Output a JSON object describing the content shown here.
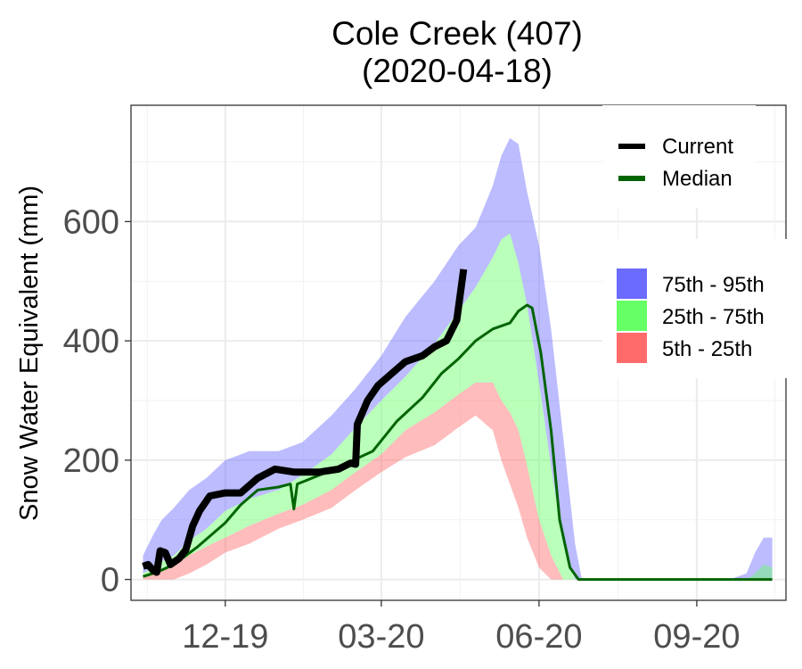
{
  "chart_data": {
    "type": "area",
    "title": [
      "Cole Creek (407)",
      "(2020-04-18)"
    ],
    "ylabel": "Snow Water Equivalent (mm)",
    "xlabel": "",
    "ylim": [
      -35,
      795
    ],
    "xlim": [
      "2019-10-07",
      "2020-10-23"
    ],
    "grid": true,
    "y_ticks": [
      0,
      200,
      400,
      600
    ],
    "x_ticks": [
      {
        "date": "2019-12-01",
        "label": "12-19"
      },
      {
        "date": "2020-03-01",
        "label": "03-20"
      },
      {
        "date": "2020-06-01",
        "label": "06-20"
      },
      {
        "date": "2020-09-01",
        "label": "09-20"
      }
    ],
    "band_dates": [
      "2019-10-14",
      "2019-10-20",
      "2019-10-25",
      "2019-11-01",
      "2019-11-10",
      "2019-11-20",
      "2019-12-01",
      "2019-12-15",
      "2020-01-01",
      "2020-01-15",
      "2020-02-01",
      "2020-02-15",
      "2020-03-01",
      "2020-03-15",
      "2020-04-01",
      "2020-04-15",
      "2020-04-25",
      "2020-05-05",
      "2020-05-10",
      "2020-05-15",
      "2020-05-20",
      "2020-05-25",
      "2020-06-01",
      "2020-06-08",
      "2020-06-15",
      "2020-06-22",
      "2020-06-26",
      "2020-07-01",
      "2020-07-10",
      "2020-08-01",
      "2020-09-01",
      "2020-09-10",
      "2020-09-20",
      "2020-09-30",
      "2020-10-05",
      "2020-10-10",
      "2020-10-15"
    ],
    "bands": [
      {
        "name": "75th - 95th",
        "color": "#6b6bff",
        "opacity": 0.45,
        "lower": [
          10,
          20,
          30,
          40,
          65,
          85,
          115,
          135,
          150,
          175,
          210,
          255,
          300,
          340,
          395,
          450,
          490,
          540,
          570,
          580,
          530,
          460,
          330,
          190,
          60,
          0,
          0,
          0,
          0,
          0,
          0,
          0,
          0,
          0,
          0,
          0,
          0
        ],
        "upper": [
          40,
          75,
          100,
          120,
          150,
          170,
          200,
          215,
          215,
          230,
          275,
          320,
          375,
          440,
          500,
          560,
          590,
          660,
          710,
          740,
          730,
          650,
          560,
          420,
          240,
          60,
          0,
          0,
          0,
          0,
          0,
          0,
          0,
          10,
          45,
          70,
          70
        ]
      },
      {
        "name": "25th - 75th",
        "color": "#66ff66",
        "opacity": 0.45,
        "lower": [
          5,
          10,
          15,
          25,
          40,
          55,
          70,
          90,
          110,
          125,
          150,
          180,
          210,
          250,
          280,
          310,
          330,
          330,
          300,
          280,
          250,
          190,
          100,
          40,
          0,
          0,
          0,
          0,
          0,
          0,
          0,
          0,
          0,
          0,
          0,
          0,
          0
        ],
        "upper": [
          10,
          20,
          30,
          40,
          65,
          85,
          115,
          135,
          150,
          175,
          210,
          255,
          300,
          340,
          395,
          450,
          490,
          540,
          570,
          580,
          530,
          460,
          330,
          190,
          60,
          0,
          0,
          0,
          0,
          0,
          0,
          0,
          0,
          0,
          10,
          25,
          20
        ]
      },
      {
        "name": "5th - 25th",
        "color": "#ff6b6b",
        "opacity": 0.45,
        "lower": [
          0,
          0,
          0,
          0,
          10,
          25,
          45,
          60,
          85,
          100,
          120,
          150,
          180,
          205,
          225,
          255,
          275,
          250,
          200,
          160,
          120,
          70,
          20,
          0,
          0,
          0,
          0,
          0,
          0,
          0,
          0,
          0,
          0,
          0,
          0,
          0,
          0
        ],
        "upper": [
          5,
          10,
          15,
          25,
          40,
          55,
          70,
          90,
          110,
          125,
          150,
          180,
          210,
          250,
          280,
          310,
          330,
          330,
          300,
          280,
          250,
          190,
          100,
          40,
          0,
          0,
          0,
          0,
          0,
          0,
          0,
          0,
          0,
          0,
          0,
          0,
          0
        ]
      }
    ],
    "series": [
      {
        "name": "Median",
        "color": "#006400",
        "width": 3,
        "points": [
          [
            "2019-10-14",
            5
          ],
          [
            "2019-10-22",
            12
          ],
          [
            "2019-11-01",
            25
          ],
          [
            "2019-11-15",
            55
          ],
          [
            "2019-12-01",
            95
          ],
          [
            "2019-12-10",
            125
          ],
          [
            "2019-12-20",
            150
          ],
          [
            "2020-01-01",
            155
          ],
          [
            "2020-01-08",
            160
          ],
          [
            "2020-01-10",
            118
          ],
          [
            "2020-01-12",
            160
          ],
          [
            "2020-01-25",
            175
          ],
          [
            "2020-02-10",
            195
          ],
          [
            "2020-02-25",
            215
          ],
          [
            "2020-03-10",
            265
          ],
          [
            "2020-03-25",
            305
          ],
          [
            "2020-04-05",
            345
          ],
          [
            "2020-04-15",
            370
          ],
          [
            "2020-04-25",
            400
          ],
          [
            "2020-05-05",
            420
          ],
          [
            "2020-05-15",
            430
          ],
          [
            "2020-05-20",
            450
          ],
          [
            "2020-05-25",
            460
          ],
          [
            "2020-05-28",
            455
          ],
          [
            "2020-06-02",
            380
          ],
          [
            "2020-06-08",
            250
          ],
          [
            "2020-06-13",
            100
          ],
          [
            "2020-06-19",
            20
          ],
          [
            "2020-06-24",
            0
          ],
          [
            "2020-10-15",
            0
          ]
        ]
      },
      {
        "name": "Current",
        "color": "#000000",
        "width": 8,
        "points": [
          [
            "2019-10-14",
            22
          ],
          [
            "2019-10-17",
            25
          ],
          [
            "2019-10-20",
            15
          ],
          [
            "2019-10-22",
            12
          ],
          [
            "2019-10-24",
            48
          ],
          [
            "2019-10-27",
            45
          ],
          [
            "2019-10-30",
            25
          ],
          [
            "2019-11-04",
            35
          ],
          [
            "2019-11-08",
            50
          ],
          [
            "2019-11-12",
            90
          ],
          [
            "2019-11-16",
            115
          ],
          [
            "2019-11-22",
            140
          ],
          [
            "2019-12-01",
            145
          ],
          [
            "2019-12-10",
            145
          ],
          [
            "2019-12-20",
            170
          ],
          [
            "2019-12-30",
            185
          ],
          [
            "2020-01-10",
            180
          ],
          [
            "2020-01-25",
            180
          ],
          [
            "2020-02-05",
            185
          ],
          [
            "2020-02-12",
            195
          ],
          [
            "2020-02-15",
            193
          ],
          [
            "2020-02-16",
            260
          ],
          [
            "2020-02-22",
            300
          ],
          [
            "2020-02-28",
            325
          ],
          [
            "2020-03-05",
            340
          ],
          [
            "2020-03-15",
            365
          ],
          [
            "2020-03-25",
            375
          ],
          [
            "2020-04-01",
            390
          ],
          [
            "2020-04-08",
            400
          ],
          [
            "2020-04-14",
            435
          ],
          [
            "2020-04-18",
            520
          ]
        ]
      }
    ],
    "legend": {
      "lines": [
        {
          "label": "Current",
          "color": "#000000"
        },
        {
          "label": "Median",
          "color": "#006400"
        }
      ],
      "fills": [
        {
          "label": "75th - 95th",
          "color": "#6b6bff"
        },
        {
          "label": "25th - 75th",
          "color": "#66ff66"
        },
        {
          "label": "5th - 25th",
          "color": "#ff6b6b"
        }
      ],
      "placement": "right"
    }
  }
}
